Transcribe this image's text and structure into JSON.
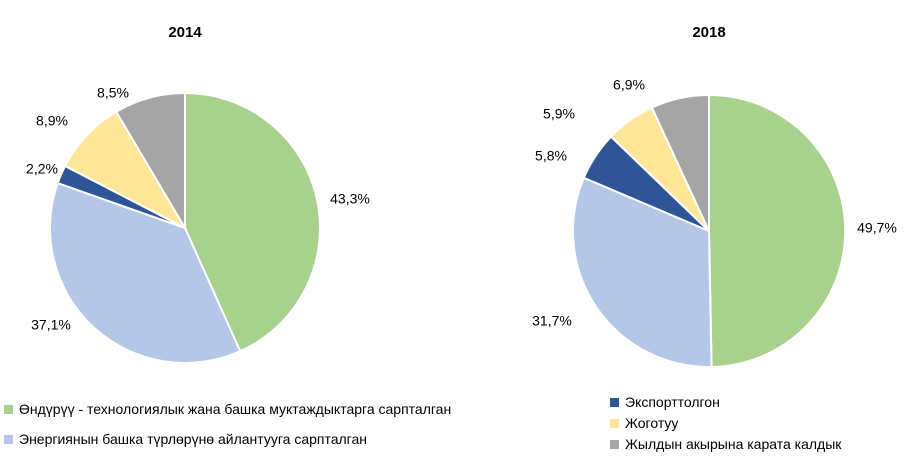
{
  "chart_data": [
    {
      "type": "pie",
      "title": "2014",
      "slices": [
        {
          "label": "Өндүрүү - технологиялык жана башка муктаждыктарга сарпталган",
          "value": 43.3,
          "display": "43,3%",
          "color": "#a9d18e"
        },
        {
          "label": "Энергиянын башка түрлөрүнө айлантууга сарпталган",
          "value": 37.1,
          "display": "37,1%",
          "color": "#b4c7e7"
        },
        {
          "label": "Экспорттолгон",
          "value": 2.2,
          "display": "2,2%",
          "color": "#2f5597"
        },
        {
          "label": "Жоготуу",
          "value": 8.9,
          "display": "8,9%",
          "color": "#ffe699"
        },
        {
          "label": "Жылдын акырына карата калдык",
          "value": 8.5,
          "display": "8,5%",
          "color": "#a5a5a5"
        }
      ]
    },
    {
      "type": "pie",
      "title": "2018",
      "slices": [
        {
          "label": "Өндүрүү - технологиялык жана башка муктаждыктарга сарпталган",
          "value": 49.7,
          "display": "49,7%",
          "color": "#a9d18e"
        },
        {
          "label": "Энергиянын башка түрлөрүнө айлантууга сарпталган",
          "value": 31.7,
          "display": "31,7%",
          "color": "#b4c7e7"
        },
        {
          "label": "Экспорттолгон",
          "value": 5.8,
          "display": "5,8%",
          "color": "#2f5597"
        },
        {
          "label": "Жоготуу",
          "value": 5.9,
          "display": "5,9%",
          "color": "#ffe699"
        },
        {
          "label": "Жылдын акырына карата калдык",
          "value": 6.9,
          "display": "6,9%",
          "color": "#a5a5a5"
        }
      ]
    }
  ],
  "legend": {
    "left": [
      {
        "label": "Өндүрүү - технологиялык жана башка муктаждыктарга сарпталган",
        "color": "#a9d18e"
      },
      {
        "label": "Энергиянын башка түрлөрүнө айлантууга сарпталган",
        "color": "#b4c7e7"
      }
    ],
    "right": [
      {
        "label": "Экспорттолгон",
        "color": "#2f5597"
      },
      {
        "label": "Жоготуу",
        "color": "#ffe699"
      },
      {
        "label": "Жылдын акырына карата калдык",
        "color": "#a5a5a5"
      }
    ]
  }
}
